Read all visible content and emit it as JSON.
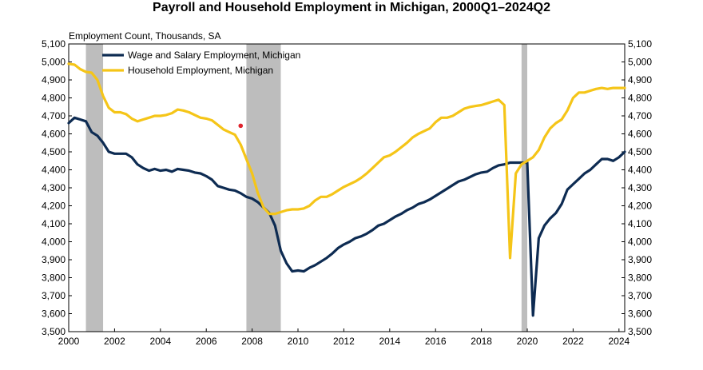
{
  "chart_data": {
    "type": "line",
    "title": "Payroll and Household Employment in Michigan, 2000Q1–2024Q2",
    "ylabel": "Employment Count, Thousands, SA",
    "xlabel": "",
    "ylim": [
      3500,
      5100
    ],
    "xlim": [
      2000,
      2024.25
    ],
    "y_ticks": [
      "3,500",
      "3,600",
      "3,700",
      "3,800",
      "3,900",
      "4,000",
      "4,100",
      "4,200",
      "4,300",
      "4,400",
      "4,500",
      "4,600",
      "4,700",
      "4,800",
      "4,900",
      "5,000",
      "5,100"
    ],
    "x_ticks": [
      "2000",
      "2002",
      "2004",
      "2006",
      "2008",
      "2010",
      "2012",
      "2014",
      "2016",
      "2018",
      "2020",
      "2022",
      "2024"
    ],
    "legend_position": "top-left",
    "grid": false,
    "recessions": [
      [
        2000.75,
        2001.5
      ],
      [
        2007.75,
        2009.25
      ],
      [
        2019.75,
        2020.0
      ]
    ],
    "series": [
      {
        "name": "Wage and Salary Employment, Michigan",
        "color": "#0d2b52",
        "x": [
          2000.0,
          2000.25,
          2000.5,
          2000.75,
          2001.0,
          2001.25,
          2001.5,
          2001.75,
          2002.0,
          2002.25,
          2002.5,
          2002.75,
          2003.0,
          2003.25,
          2003.5,
          2003.75,
          2004.0,
          2004.25,
          2004.5,
          2004.75,
          2005.0,
          2005.25,
          2005.5,
          2005.75,
          2006.0,
          2006.25,
          2006.5,
          2006.75,
          2007.0,
          2007.25,
          2007.5,
          2007.75,
          2008.0,
          2008.25,
          2008.5,
          2008.75,
          2009.0,
          2009.25,
          2009.5,
          2009.75,
          2010.0,
          2010.25,
          2010.5,
          2010.75,
          2011.0,
          2011.25,
          2011.5,
          2011.75,
          2012.0,
          2012.25,
          2012.5,
          2012.75,
          2013.0,
          2013.25,
          2013.5,
          2013.75,
          2014.0,
          2014.25,
          2014.5,
          2014.75,
          2015.0,
          2015.25,
          2015.5,
          2015.75,
          2016.0,
          2016.25,
          2016.5,
          2016.75,
          2017.0,
          2017.25,
          2017.5,
          2017.75,
          2018.0,
          2018.25,
          2018.5,
          2018.75,
          2019.0,
          2019.25,
          2019.5,
          2019.75,
          2020.0,
          2020.25,
          2020.5,
          2020.75,
          2021.0,
          2021.25,
          2021.5,
          2021.75,
          2022.0,
          2022.25,
          2022.5,
          2022.75,
          2023.0,
          2023.25,
          2023.5,
          2023.75,
          2024.0,
          2024.25
        ],
        "values": [
          4660,
          4690,
          4680,
          4670,
          4610,
          4590,
          4550,
          4500,
          4490,
          4490,
          4490,
          4470,
          4430,
          4410,
          4395,
          4405,
          4395,
          4400,
          4390,
          4405,
          4400,
          4395,
          4385,
          4380,
          4365,
          4345,
          4310,
          4300,
          4290,
          4285,
          4270,
          4250,
          4240,
          4220,
          4190,
          4160,
          4090,
          3950,
          3880,
          3835,
          3840,
          3835,
          3855,
          3870,
          3890,
          3910,
          3935,
          3965,
          3985,
          4000,
          4020,
          4030,
          4045,
          4065,
          4090,
          4100,
          4120,
          4140,
          4155,
          4175,
          4190,
          4210,
          4220,
          4235,
          4255,
          4275,
          4295,
          4315,
          4335,
          4345,
          4360,
          4375,
          4385,
          4390,
          4410,
          4425,
          4430,
          4440,
          4440,
          4440,
          4440,
          3590,
          4020,
          4090,
          4130,
          4160,
          4210,
          4290,
          4320,
          4350,
          4380,
          4400,
          4430,
          4460,
          4460,
          4450,
          4470,
          4500
        ]
      },
      {
        "name": "Household Employment, Michigan",
        "color": "#f5c518",
        "x": [
          2000.0,
          2000.25,
          2000.5,
          2000.75,
          2001.0,
          2001.25,
          2001.5,
          2001.75,
          2002.0,
          2002.25,
          2002.5,
          2002.75,
          2003.0,
          2003.25,
          2003.5,
          2003.75,
          2004.0,
          2004.25,
          2004.5,
          2004.75,
          2005.0,
          2005.25,
          2005.5,
          2005.75,
          2006.0,
          2006.25,
          2006.5,
          2006.75,
          2007.0,
          2007.25,
          2007.5,
          2007.75,
          2008.0,
          2008.25,
          2008.5,
          2008.75,
          2009.0,
          2009.25,
          2009.5,
          2009.75,
          2010.0,
          2010.25,
          2010.5,
          2010.75,
          2011.0,
          2011.25,
          2011.5,
          2011.75,
          2012.0,
          2012.25,
          2012.5,
          2012.75,
          2013.0,
          2013.25,
          2013.5,
          2013.75,
          2014.0,
          2014.25,
          2014.5,
          2014.75,
          2015.0,
          2015.25,
          2015.5,
          2015.75,
          2016.0,
          2016.25,
          2016.5,
          2016.75,
          2017.0,
          2017.25,
          2017.5,
          2017.75,
          2018.0,
          2018.25,
          2018.5,
          2018.75,
          2019.0,
          2019.25,
          2019.5,
          2019.75,
          2020.0,
          2020.25,
          2020.5,
          2020.75,
          2021.0,
          2021.25,
          2021.5,
          2021.75,
          2022.0,
          2022.25,
          2022.5,
          2022.75,
          2023.0,
          2023.25,
          2023.5,
          2023.75,
          2024.0,
          2024.25
        ],
        "values": [
          4990,
          4985,
          4960,
          4945,
          4940,
          4900,
          4810,
          4745,
          4720,
          4720,
          4710,
          4685,
          4670,
          4680,
          4690,
          4700,
          4700,
          4705,
          4715,
          4735,
          4730,
          4720,
          4705,
          4690,
          4685,
          4675,
          4650,
          4625,
          4610,
          4595,
          4540,
          4460,
          4380,
          4270,
          4190,
          4155,
          4155,
          4165,
          4175,
          4180,
          4180,
          4185,
          4200,
          4230,
          4250,
          4250,
          4265,
          4285,
          4305,
          4320,
          4335,
          4355,
          4380,
          4410,
          4440,
          4470,
          4480,
          4500,
          4525,
          4550,
          4580,
          4600,
          4615,
          4630,
          4665,
          4690,
          4690,
          4700,
          4720,
          4740,
          4750,
          4755,
          4760,
          4770,
          4780,
          4790,
          4760,
          3910,
          4380,
          4430,
          4450,
          4470,
          4510,
          4580,
          4630,
          4660,
          4680,
          4730,
          4800,
          4830,
          4830,
          4840,
          4850,
          4855,
          4850,
          4855,
          4855,
          4855
        ],
        "marker": {
          "x": 2007.5,
          "y": 4645,
          "color": "#e0242e"
        }
      }
    ]
  }
}
